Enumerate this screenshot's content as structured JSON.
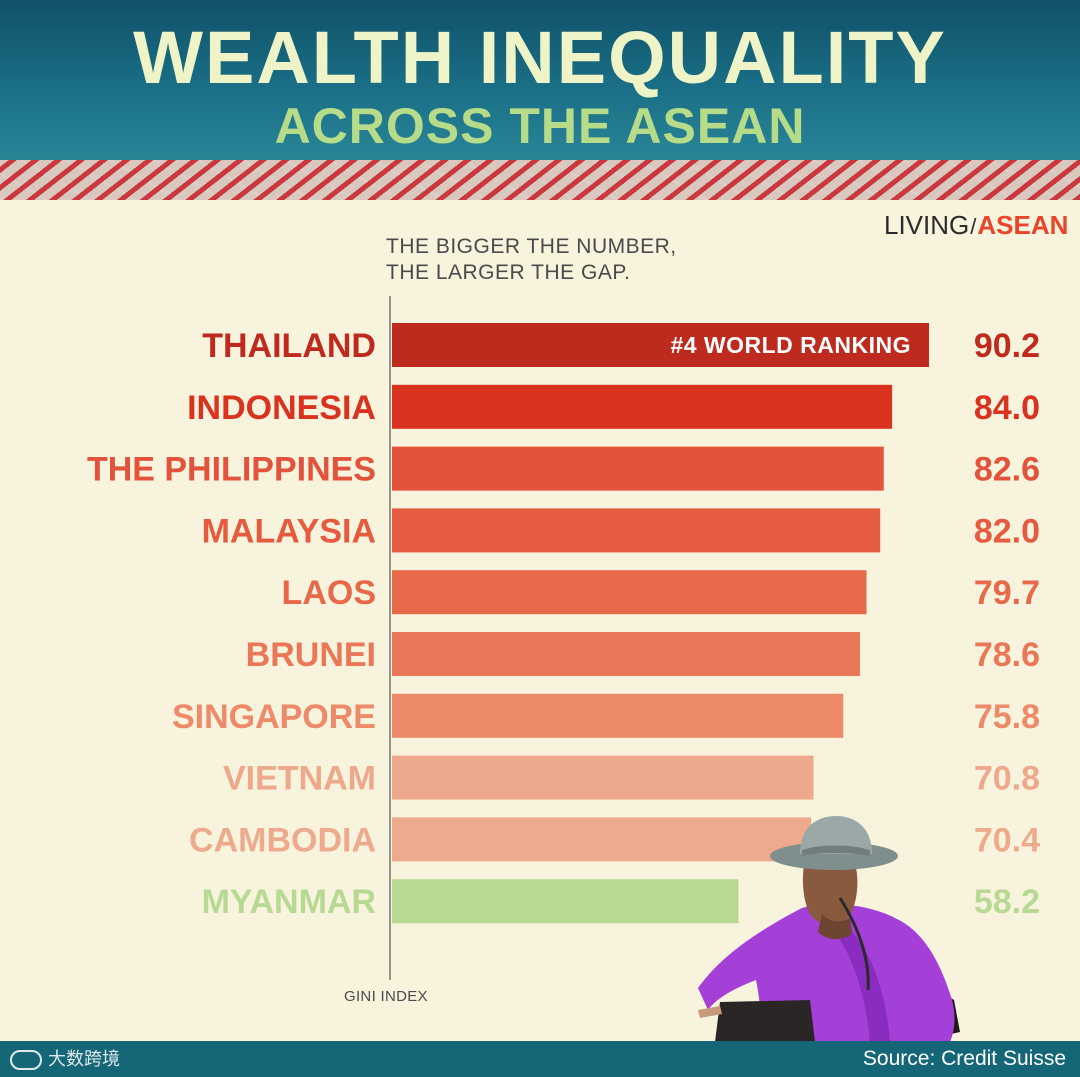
{
  "header": {
    "title": "WEALTH INEQUALITY",
    "subtitle": "ACROSS THE ASEAN"
  },
  "brand": {
    "part1": "LIVING",
    "separator": "/",
    "part2": "ASEAN"
  },
  "note": {
    "line1": "THE BIGGER THE NUMBER,",
    "line2": "THE LARGER THE GAP."
  },
  "chart_data": {
    "type": "bar",
    "orientation": "horizontal",
    "categories": [
      "THAILAND",
      "INDONESIA",
      "THE PHILIPPINES",
      "MALAYSIA",
      "LAOS",
      "BRUNEI",
      "SINGAPORE",
      "VIETNAM",
      "CAMBODIA",
      "MYANMAR"
    ],
    "values": [
      90.2,
      84.0,
      82.6,
      82.0,
      79.7,
      78.6,
      75.8,
      70.8,
      70.4,
      58.2
    ],
    "value_labels": [
      "90.2",
      "84.0",
      "82.6",
      "82.0",
      "79.7",
      "78.6",
      "75.8",
      "70.8",
      "70.4",
      "58.2"
    ],
    "colors": [
      "#bf2a1e",
      "#d9321f",
      "#e3533b",
      "#e65a3f",
      "#e8694a",
      "#ea7858",
      "#ec8a69",
      "#eea88b",
      "#eeaa8d",
      "#b8d993"
    ],
    "annotations": [
      {
        "category": "THAILAND",
        "text": "#4 WORLD RANKING"
      }
    ],
    "xlabel": "GINI INDEX",
    "xlim": [
      0,
      90.2
    ],
    "grid": false,
    "legend": "none"
  },
  "footer": {
    "watermark": "大数跨境",
    "source": "Source: Credit Suisse"
  }
}
